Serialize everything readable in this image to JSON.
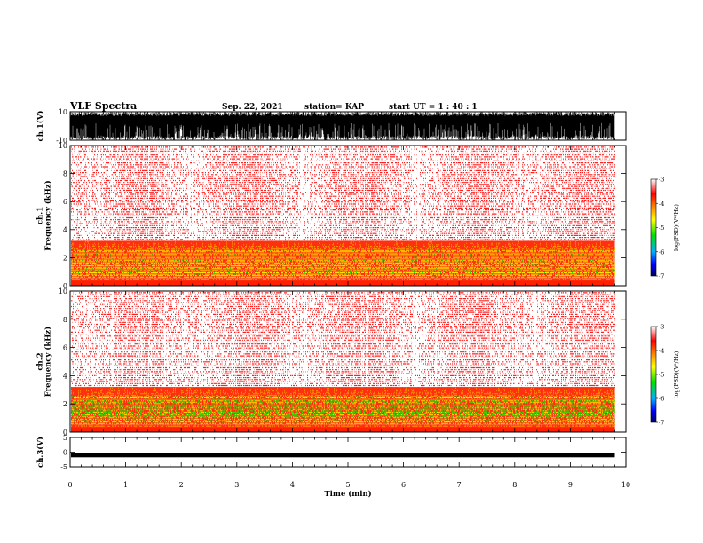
{
  "header": {
    "title": "VLF Spectra",
    "date": "Sep. 22, 2021",
    "station": "station= KAP",
    "start": "start  UT =   1 : 40 : 1"
  },
  "chart_data": [
    {
      "type": "line",
      "name": "ch1-waveform",
      "ylabel": "ch.1(V)",
      "ylim": [
        -10,
        10
      ],
      "yticks": [
        "10",
        "-10"
      ],
      "xlim": [
        0,
        10
      ],
      "x_extent": 9.8,
      "description_level": "saturated oscillation between -10 and 10 V"
    },
    {
      "type": "heatmap",
      "name": "ch1-spectrogram",
      "ylabel": "ch.1\nFrequency  (kHz)",
      "ylim": [
        0,
        10
      ],
      "yticks": [
        "0",
        "2",
        "4",
        "6",
        "8",
        "10"
      ],
      "xlim": [
        0,
        10
      ],
      "x_extent": 9.8,
      "colorbar": {
        "label": "log(PSD)(V²/Hz)",
        "range": [
          -7,
          -3
        ],
        "ticks": [
          "-3",
          "-4",
          "-5",
          "-6",
          "-7"
        ]
      }
    },
    {
      "type": "heatmap",
      "name": "ch2-spectrogram",
      "ylabel": "ch.2\nFrequency  (kHz)",
      "ylim": [
        0,
        10
      ],
      "yticks": [
        "0",
        "2",
        "4",
        "6",
        "8",
        "10"
      ],
      "xlim": [
        0,
        10
      ],
      "x_extent": 9.8,
      "colorbar": {
        "label": "log(PSD)(V²/Hz)",
        "range": [
          -7,
          -3
        ],
        "ticks": [
          "-3",
          "-4",
          "-5",
          "-6",
          "-7"
        ]
      }
    },
    {
      "type": "line",
      "name": "ch3-waveform",
      "ylabel": "ch.3(V)",
      "ylim": [
        -5,
        5
      ],
      "yticks": [
        "5",
        "0",
        "-5"
      ],
      "xlim": [
        0,
        10
      ],
      "x_extent": 9.8,
      "level": -1
    }
  ],
  "xaxis": {
    "label": "Time  (min)",
    "ticks": [
      "0",
      "1",
      "2",
      "3",
      "4",
      "5",
      "6",
      "7",
      "8",
      "9",
      "10"
    ]
  },
  "colors": {
    "spectrum_low": "#000099",
    "spectrum_mid": "#00dd00",
    "spectrum_high": "#ff0000",
    "trace": "#000000"
  }
}
